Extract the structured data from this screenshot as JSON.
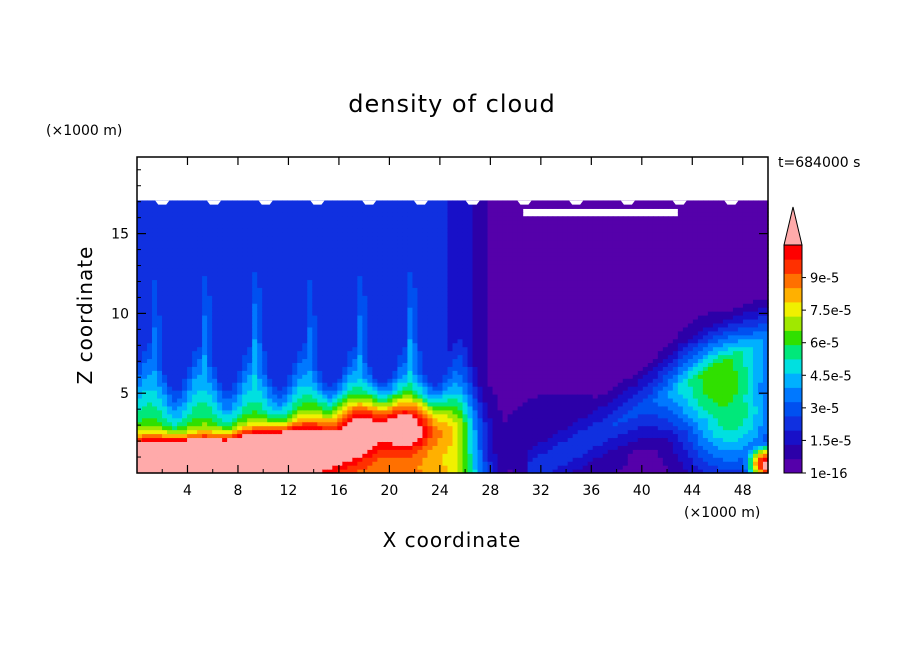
{
  "chart_data": {
    "type": "heatmap",
    "title": "density of cloud",
    "xlabel": "X coordinate",
    "ylabel": "Z coordinate",
    "x_unit": "(×1000 m)",
    "z_unit": "(×1000 m)",
    "time_label": "t=684000 s",
    "xlim": [
      0,
      50
    ],
    "zlim": [
      0,
      19.8
    ],
    "x_ticks": [
      4,
      8,
      12,
      16,
      20,
      24,
      28,
      32,
      36,
      40,
      44,
      48
    ],
    "z_ticks": [
      5,
      10,
      15
    ],
    "colorbar": {
      "min": 1e-16,
      "max": 0.000105,
      "labels": [
        "1e-16",
        "1.5e-5",
        "3e-5",
        "4.5e-5",
        "6e-5",
        "7.5e-5",
        "9e-5"
      ],
      "label_values": [
        0,
        1.5e-05,
        3e-05,
        4.5e-05,
        6e-05,
        7.5e-05,
        9e-05
      ],
      "levels": 14,
      "colors": [
        "#5500aa",
        "#2c00a8",
        "#1810c8",
        "#1030e0",
        "#0050f0",
        "#0078ff",
        "#00b0ff",
        "#00e0e0",
        "#00e87a",
        "#30e000",
        "#a0e800",
        "#f0f000",
        "#ffb000",
        "#ff7000",
        "#ff3000",
        "#ff0000"
      ],
      "overflow_color": "#ffaaaa"
    },
    "field": {
      "grid_x": [
        0,
        2,
        4,
        6,
        8,
        10,
        12,
        14,
        16,
        18,
        20,
        22,
        24,
        26,
        28,
        30,
        32,
        34,
        36,
        38,
        40,
        42,
        44,
        46,
        48,
        50
      ],
      "grid_z": [
        0.5,
        1.5,
        2.5,
        3.5,
        4.5,
        5.5,
        6.5,
        7.5,
        8.5,
        9.5,
        10.5,
        11.5,
        12.5,
        13.5,
        14.5,
        15.5,
        16.5
      ],
      "cloud_top_km": 17
    }
  }
}
